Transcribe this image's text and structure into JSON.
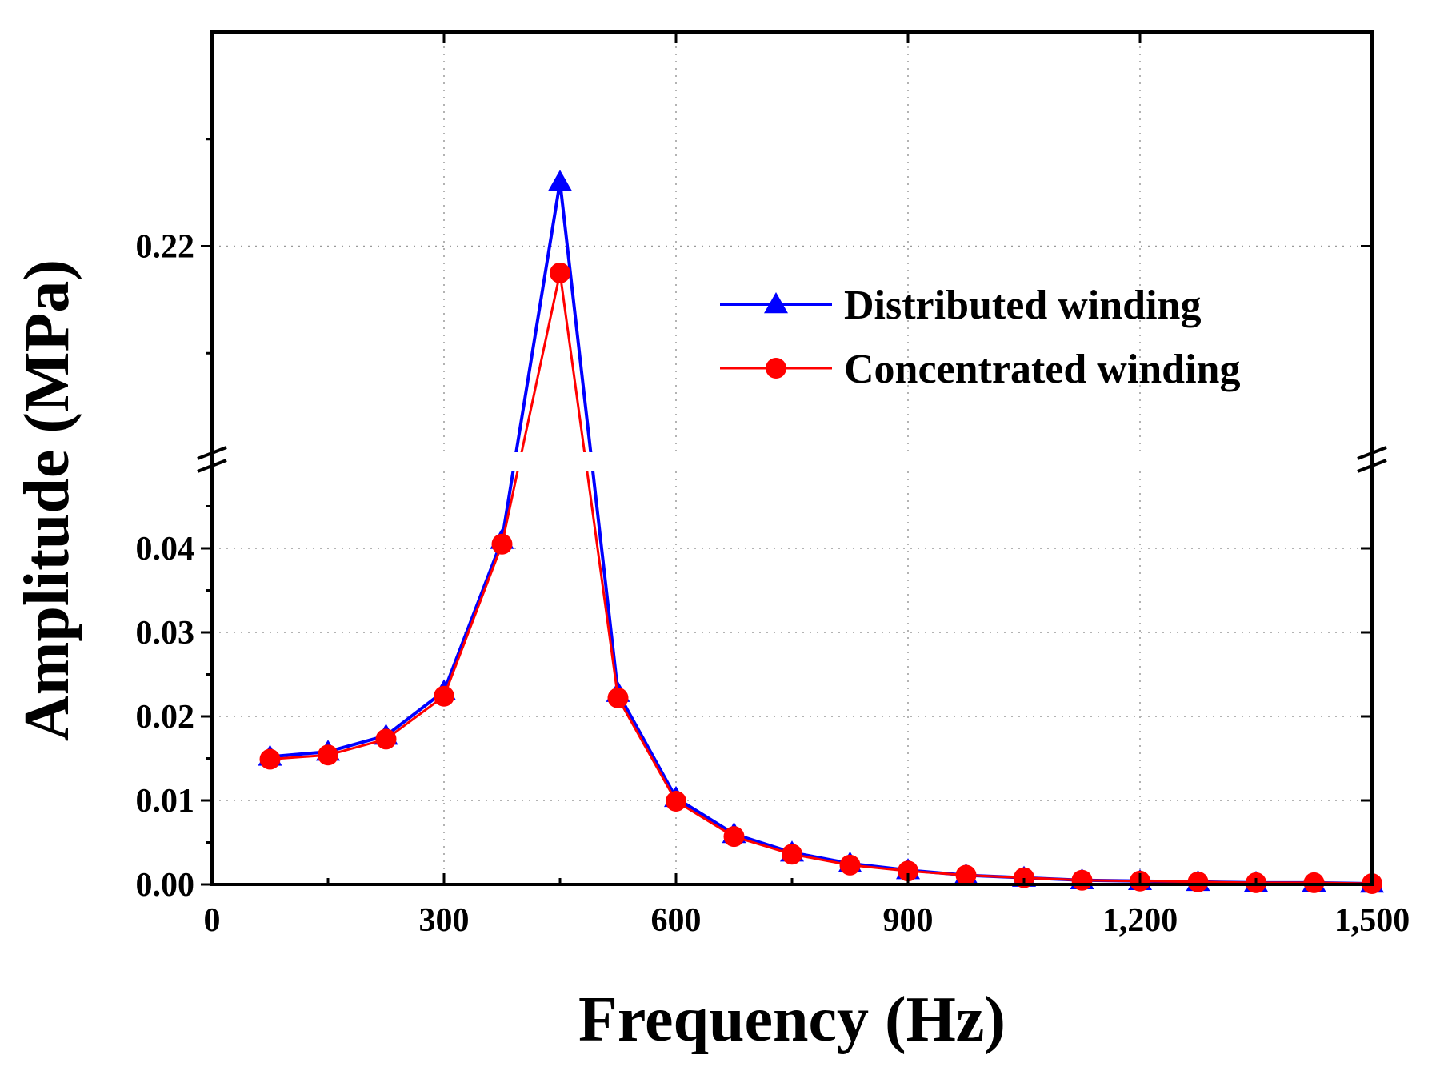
{
  "chart_data": {
    "type": "line",
    "xlabel": "Frequency (Hz)",
    "ylabel": "Amplitude (MPa)",
    "xlim": [
      0,
      1500
    ],
    "x_ticks": [
      0,
      300,
      600,
      900,
      1200,
      1500
    ],
    "x_tick_labels": [
      "0",
      "300",
      "600",
      "900",
      "1,200",
      "1,500"
    ],
    "y_axis_break": true,
    "y_lower_range": [
      0,
      0.05
    ],
    "y_lower_ticks": [
      0.0,
      0.01,
      0.02,
      0.03,
      0.04
    ],
    "y_lower_tick_labels": [
      "0.00",
      "0.01",
      "0.02",
      "0.03",
      "0.04"
    ],
    "y_upper_range": [
      0.2,
      0.24
    ],
    "y_upper_ticks": [
      0.22
    ],
    "y_upper_tick_labels": [
      "0.22"
    ],
    "legend_position": "top-right",
    "x": [
      75,
      150,
      225,
      300,
      375,
      450,
      525,
      600,
      675,
      750,
      825,
      900,
      975,
      1050,
      1125,
      1200,
      1275,
      1350,
      1425,
      1500
    ],
    "series": [
      {
        "name": "Distributed winding",
        "color": "#0000ff",
        "marker": "triangle",
        "values": [
          0.0152,
          0.0158,
          0.0177,
          0.023,
          0.041,
          0.226,
          0.0228,
          0.0103,
          0.006,
          0.0038,
          0.0025,
          0.0017,
          0.0011,
          0.0008,
          0.0005,
          0.0004,
          0.0003,
          0.0002,
          0.0002,
          0.0001
        ]
      },
      {
        "name": "Concentrated winding",
        "color": "#ff0000",
        "marker": "circle",
        "values": [
          0.0149,
          0.0154,
          0.0173,
          0.0224,
          0.0405,
          0.2175,
          0.0222,
          0.0099,
          0.0057,
          0.0036,
          0.0023,
          0.0016,
          0.0011,
          0.0008,
          0.0005,
          0.0004,
          0.0003,
          0.0002,
          0.0002,
          0.0001
        ]
      }
    ]
  }
}
